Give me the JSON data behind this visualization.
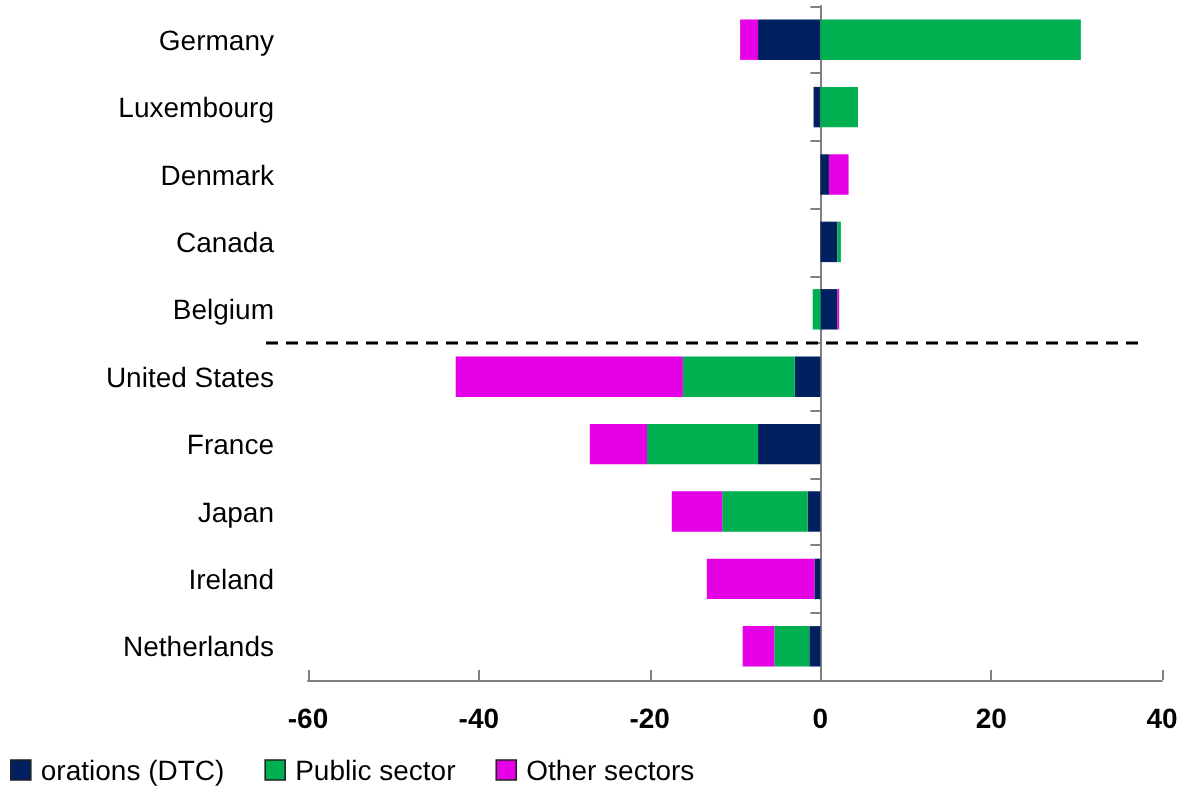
{
  "chart_data": {
    "type": "bar",
    "orientation": "horizontal",
    "stacked": true,
    "categories": [
      "Germany",
      "Luxembourg",
      "Denmark",
      "Canada",
      "Belgium",
      "United States",
      "France",
      "Japan",
      "Ireland",
      "Netherlands"
    ],
    "series": [
      {
        "name": "orations (DTC)",
        "color": "#002060",
        "values": [
          -7.3,
          -0.8,
          1.0,
          2.0,
          2.0,
          -3.0,
          -7.3,
          -1.5,
          -0.7,
          -1.3
        ]
      },
      {
        "name": "Public sector",
        "color": "#00b050",
        "values": [
          30.5,
          4.4,
          0,
          0.4,
          -0.9,
          -13.1,
          -13.0,
          -10.0,
          0,
          -4.1
        ]
      },
      {
        "name": "Other sectors",
        "color": "#e600e6",
        "values": [
          -2.1,
          0,
          2.3,
          0,
          0.2,
          -26.6,
          -6.7,
          -5.9,
          -12.6,
          -3.7
        ]
      }
    ],
    "xlim": [
      -60,
      40
    ],
    "xticks": [
      -60,
      -40,
      -20,
      0,
      20,
      40
    ],
    "grid": false,
    "legend": "bottom",
    "ref_lines": [
      {
        "axis": "y",
        "value": "Belgium",
        "line_style": "dashed",
        "color": "#000000"
      }
    ]
  }
}
